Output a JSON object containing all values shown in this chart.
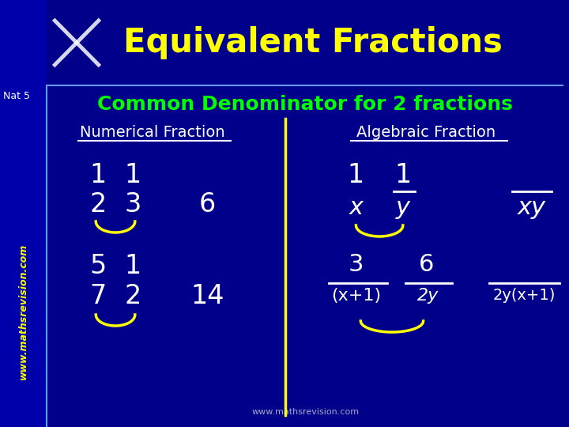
{
  "bg_color": "#00008B",
  "title": "Equivalent Fractions",
  "title_color": "#FFFF00",
  "subtitle": "Common Denominator for 2 fractions",
  "subtitle_color": "#00FF00",
  "nat5_text": "Nat 5",
  "nat5_color": "#FFFFFF",
  "sidebar_text": "www.mathsrevision.com",
  "sidebar_color": "#FFFF00",
  "footer_text": "www.mathsrevision.com",
  "footer_color": "#AAAACC",
  "divider_color": "#FFFF00",
  "white": "#FFFFFF",
  "yellow": "#FFFF00",
  "section_left": "Numerical Fraction",
  "section_right": "Algebraic Fraction",
  "smile_color": "#FFFF00"
}
